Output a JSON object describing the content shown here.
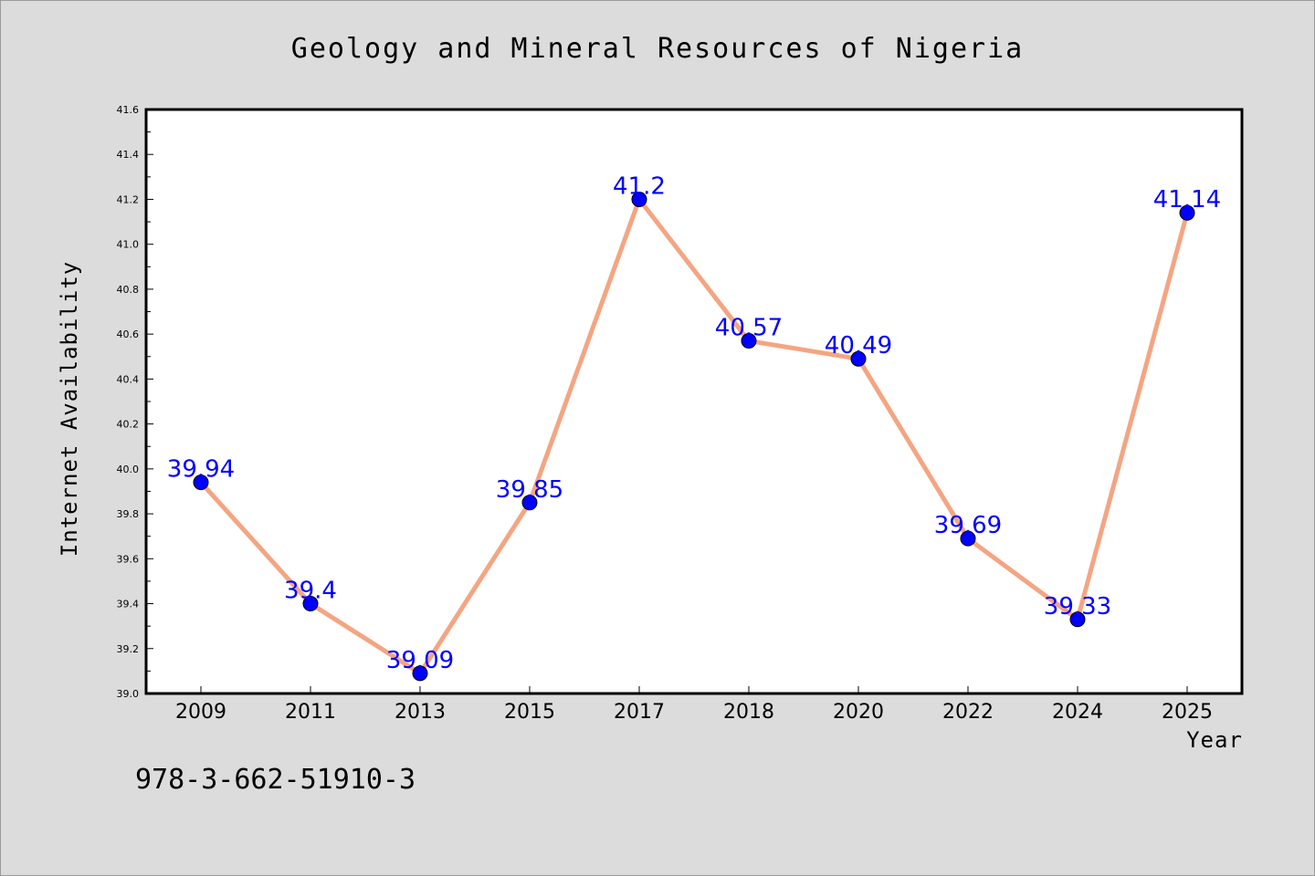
{
  "chart_data": {
    "type": "line",
    "title": "Geology and Mineral Resources of Nigeria",
    "xlabel": "Year",
    "ylabel": "Internet Availability",
    "categories": [
      "2009",
      "2011",
      "2013",
      "2015",
      "2017",
      "2018",
      "2020",
      "2022",
      "2024",
      "2025"
    ],
    "series": [
      {
        "values": [
          39.94,
          39.4,
          39.09,
          39.85,
          41.2,
          40.57,
          40.49,
          39.69,
          39.33,
          41.14
        ],
        "labels": [
          "39.94",
          "39.4",
          "39.09",
          "39.85",
          "41.2",
          "40.57",
          "40.49",
          "39.69",
          "39.33",
          "41.14"
        ],
        "line_color": "#f4a582",
        "marker_color": "#0000ff"
      }
    ],
    "ylim": [
      39.0,
      41.6
    ],
    "yticks": [
      "39.0",
      "39.2",
      "39.4",
      "39.6",
      "39.8",
      "40.0",
      "40.2",
      "40.4",
      "40.6",
      "40.8",
      "41.0",
      "41.2",
      "41.4",
      "41.6"
    ],
    "data_label_color": "#0000ff",
    "grid": false,
    "background_color": "#dcdcdc",
    "plot_background_color": "#ffffff"
  },
  "note": "978-3-662-51910-3"
}
